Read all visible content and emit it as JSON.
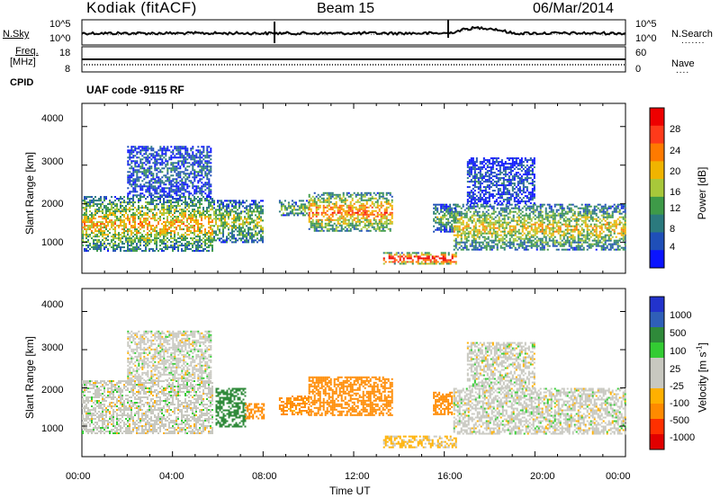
{
  "header": {
    "station": "Kodiak (fitACF)",
    "beam": "Beam 15",
    "date": "06/Mar/2014"
  },
  "strips": {
    "nsky_label": "N.Sky",
    "nsearch_label": "N.Search",
    "freq_label_1": "Freq.",
    "freq_label_2": "[MHz]",
    "nave_label": "Nave",
    "cpid_label": "CPID",
    "cpid_text": "UAF code -9115 RF",
    "noise_ticks_left": [
      "10^5",
      "10^0"
    ],
    "noise_ticks_right": [
      "10^5",
      "10^0"
    ],
    "freq_ticks": [
      "18",
      "8"
    ],
    "nave_ticks": [
      "60",
      "0"
    ]
  },
  "colors": {
    "power_scale": [
      "#0a14ff",
      "#1f4fb8",
      "#2b7a7e",
      "#3e9a48",
      "#a8c83a",
      "#f0b400",
      "#ff7a00",
      "#ff3a1a",
      "#ee0000"
    ],
    "velocity_scale": [
      "#e10000",
      "#ff3000",
      "#ff8a00",
      "#ffb000",
      "#c8c8c0",
      "#c8c8c0",
      "#33cc33",
      "#2f8a3a",
      "#2f5fb8",
      "#2233cc"
    ]
  },
  "chart_data": [
    {
      "type": "heatmap",
      "panel": "power",
      "ylabel": "Slant Range [km]",
      "yticks": [
        "4000",
        "3000",
        "2000",
        "1000"
      ],
      "ylim": [
        200,
        4600
      ],
      "xlim": [
        0,
        24
      ],
      "colorbar": {
        "label": "Power [dB]",
        "ticks": [
          "28",
          "24",
          "20",
          "16",
          "12",
          "8",
          "4"
        ]
      },
      "echo_regions": [
        {
          "t0": 0.0,
          "t1": 5.8,
          "r0": 800,
          "r1": 2200,
          "level": 0.55
        },
        {
          "t0": 2.0,
          "t1": 5.7,
          "r0": 2200,
          "r1": 3500,
          "level": 0.2
        },
        {
          "t0": 5.8,
          "t1": 8.0,
          "r0": 1000,
          "r1": 2100,
          "level": 0.45
        },
        {
          "t0": 8.7,
          "t1": 10.0,
          "r0": 1700,
          "r1": 2100,
          "level": 0.4
        },
        {
          "t0": 10.0,
          "t1": 13.7,
          "r0": 1300,
          "r1": 2300,
          "level": 0.65
        },
        {
          "t0": 13.3,
          "t1": 16.5,
          "r0": 450,
          "r1": 750,
          "level": 0.9
        },
        {
          "t0": 15.5,
          "t1": 16.5,
          "r0": 1300,
          "r1": 2000,
          "level": 0.35
        },
        {
          "t0": 16.4,
          "t1": 24.0,
          "r0": 800,
          "r1": 2000,
          "level": 0.5
        },
        {
          "t0": 17.0,
          "t1": 20.0,
          "r0": 2000,
          "r1": 3200,
          "level": 0.15
        }
      ]
    },
    {
      "type": "heatmap",
      "panel": "velocity",
      "ylabel": "Slant Range [km]",
      "xlabel": "Time UT",
      "yticks": [
        "4000",
        "3000",
        "2000",
        "1000"
      ],
      "ylim": [
        200,
        4600
      ],
      "xlim": [
        0,
        24
      ],
      "xticks": [
        "00:00",
        "04:00",
        "08:00",
        "12:00",
        "16:00",
        "20:00",
        "00:00"
      ],
      "colorbar": {
        "label": "Velocity [m s",
        "label_sup": "-1",
        "label_end": "]",
        "ticks": [
          "1000",
          "500",
          "100",
          "25",
          "-25",
          "-100",
          "-500",
          "-1000"
        ]
      },
      "echo_regions": [
        {
          "t0": 0.0,
          "t1": 5.8,
          "r0": 800,
          "r1": 2200,
          "vel": 0
        },
        {
          "t0": 2.0,
          "t1": 5.7,
          "r0": 2200,
          "r1": 3500,
          "vel": 0
        },
        {
          "t0": 5.9,
          "t1": 7.2,
          "r0": 1000,
          "r1": 2000,
          "vel": 120
        },
        {
          "t0": 7.2,
          "t1": 8.0,
          "r0": 1200,
          "r1": 1600,
          "vel": -120
        },
        {
          "t0": 8.7,
          "t1": 10.0,
          "r0": 1300,
          "r1": 1800,
          "vel": -100
        },
        {
          "t0": 10.0,
          "t1": 13.7,
          "r0": 1300,
          "r1": 2300,
          "vel": -150
        },
        {
          "t0": 13.3,
          "t1": 16.5,
          "r0": 450,
          "r1": 750,
          "vel": -40
        },
        {
          "t0": 15.5,
          "t1": 16.3,
          "r0": 1300,
          "r1": 1900,
          "vel": -120
        },
        {
          "t0": 16.4,
          "t1": 24.0,
          "r0": 800,
          "r1": 2000,
          "vel": 0
        },
        {
          "t0": 17.0,
          "t1": 20.0,
          "r0": 2000,
          "r1": 3200,
          "vel": 0
        }
      ]
    }
  ]
}
